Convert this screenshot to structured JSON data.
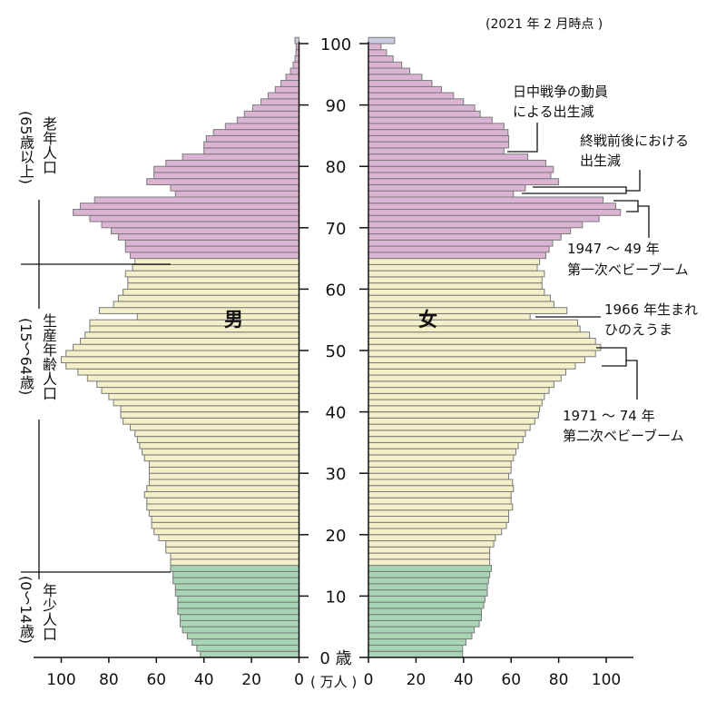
{
  "chart_data": {
    "type": "bar",
    "subtype": "population-pyramid",
    "title": "(2021 年 2 月時点 )",
    "unit_label": "( 万人 )",
    "age_axis": {
      "min": 0,
      "max": 100,
      "ticks": [
        0,
        10,
        20,
        30,
        40,
        50,
        60,
        70,
        80,
        90,
        100
      ],
      "zero_label": "0 歳"
    },
    "value_axis": {
      "min": 0,
      "max": 100,
      "ticks": [
        0,
        20,
        40,
        60,
        80,
        100
      ]
    },
    "series": [
      {
        "name": "男",
        "side": "left",
        "values": [
          41.5,
          43,
          45,
          47,
          49,
          50,
          50,
          51,
          51,
          51,
          52,
          52,
          53,
          53,
          54,
          54,
          54,
          56,
          56,
          59,
          61,
          62,
          62,
          63,
          64,
          64,
          65,
          64,
          63,
          63,
          63,
          63,
          65,
          66,
          67,
          68,
          69,
          71,
          74,
          75,
          75,
          78,
          80,
          83,
          85,
          89,
          93,
          98,
          100,
          98,
          95,
          92,
          90,
          88,
          88,
          68,
          84,
          78,
          76,
          74,
          72,
          72,
          73,
          70,
          69,
          71,
          73,
          73,
          76,
          79,
          83,
          88,
          95,
          92,
          86,
          52,
          54,
          64,
          61,
          61,
          56,
          49,
          40,
          40,
          39,
          36,
          31,
          26,
          23,
          19.5,
          16,
          13,
          10,
          7.6,
          5.5,
          3.6,
          2.5,
          1.7,
          1.3,
          1.2,
          1.7
        ]
      },
      {
        "name": "女",
        "side": "right",
        "values": [
          39.6,
          39.6,
          41,
          43.5,
          44.5,
          46.6,
          47.5,
          47.5,
          48.5,
          49,
          50,
          50,
          50.5,
          51,
          51.7,
          51,
          51,
          51,
          52.7,
          53.4,
          56,
          58,
          59,
          59,
          60.6,
          60,
          60,
          61,
          60.6,
          59,
          60,
          60,
          61,
          62,
          63,
          65,
          66,
          68,
          70,
          71.5,
          72,
          73,
          74,
          76,
          78,
          81,
          83,
          87,
          91,
          95.5,
          97.7,
          95.5,
          93,
          89,
          88,
          68,
          83.5,
          78,
          76.5,
          74,
          73,
          73,
          74,
          71,
          72,
          74.6,
          76,
          77.5,
          81,
          85,
          90,
          97,
          106,
          104,
          98.7,
          61,
          66,
          80,
          76.7,
          77.8,
          74.6,
          67,
          57,
          59,
          59,
          58.7,
          57,
          52,
          47,
          44.7,
          40,
          35.8,
          30.7,
          26.7,
          22.5,
          17.4,
          14,
          10.4,
          7.6,
          5.3,
          11
        ]
      }
    ],
    "age_groups": [
      {
        "label": "年少人口",
        "range": "(0〜14歳)",
        "from": 0,
        "to": 14,
        "color": "#a8d5b4"
      },
      {
        "label": "生産年齢人口",
        "range": "(15〜64歳)",
        "from": 15,
        "to": 64,
        "color": "#f3efc9"
      },
      {
        "label": "老年人口",
        "range": "(65歳以上)",
        "from": 65,
        "to": 100,
        "color": "#dbb4d4"
      }
    ],
    "annotations": [
      {
        "line1": "日中戦争の動員",
        "line2": "による出生減"
      },
      {
        "line1": "終戦前後における",
        "line2": "出生減"
      },
      {
        "line1": "1947 〜 49 年",
        "line2": "第一次ベビーブーム"
      },
      {
        "line1": "1966 年生まれ",
        "line2": "ひのえうま"
      },
      {
        "line1": "1971 〜 74 年",
        "line2": "第二次ベビーブーム"
      }
    ]
  }
}
